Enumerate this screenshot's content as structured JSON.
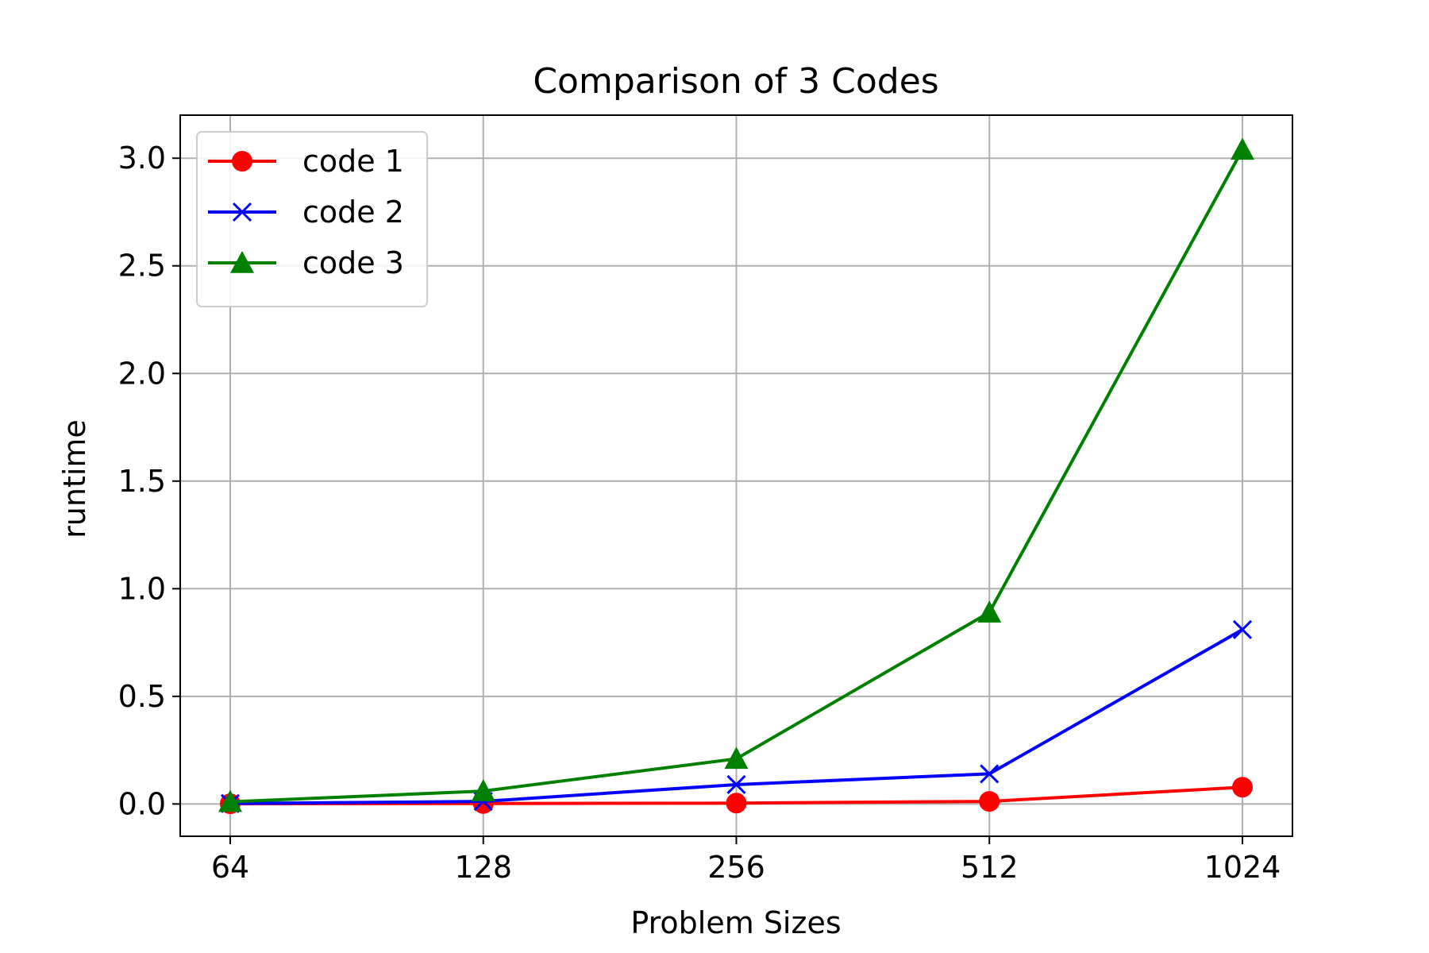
{
  "chart_data": {
    "type": "line",
    "title": "Comparison of 3 Codes",
    "xlabel": "Problem Sizes",
    "ylabel": "runtime",
    "categories": [
      "64",
      "128",
      "256",
      "512",
      "1024"
    ],
    "ylim": [
      -0.15,
      3.2
    ],
    "yticks": [
      0.0,
      0.5,
      1.0,
      1.5,
      2.0,
      2.5,
      3.0
    ],
    "ytick_labels": [
      "0.0",
      "0.5",
      "1.0",
      "1.5",
      "2.0",
      "2.5",
      "3.0"
    ],
    "grid": true,
    "legend_position": "top-left",
    "series": [
      {
        "name": "code 1",
        "color": "#ff0000",
        "marker": "circle",
        "values": [
          0.001,
          0.002,
          0.004,
          0.012,
          0.078
        ]
      },
      {
        "name": "code 2",
        "color": "#0000ff",
        "marker": "x",
        "values": [
          0.002,
          0.012,
          0.09,
          0.14,
          0.81
        ]
      },
      {
        "name": "code 3",
        "color": "#008000",
        "marker": "triangle",
        "values": [
          0.01,
          0.06,
          0.21,
          0.89,
          3.04
        ]
      }
    ]
  }
}
